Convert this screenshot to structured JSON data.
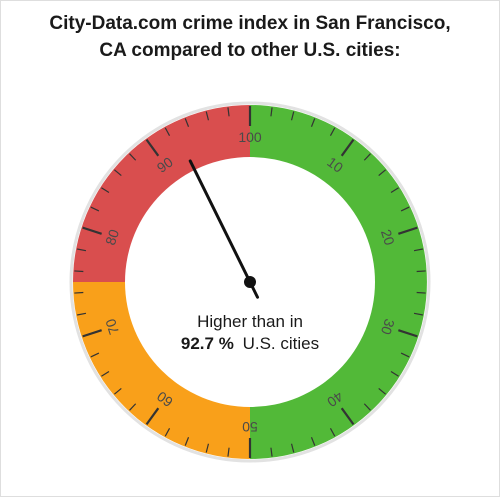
{
  "title": {
    "line1": "City-Data.com crime index in San Francisco,",
    "line2": "CA compared to other U.S. cities:"
  },
  "colors": {
    "low": "#52b938",
    "mid": "#f9a01a",
    "high": "#d94e4e",
    "needle": "#111111"
  },
  "chart_data": {
    "type": "gauge",
    "min": 0,
    "max": 100,
    "value": 92.7,
    "bands": [
      {
        "from": 0,
        "to": 50,
        "color": "#52b938"
      },
      {
        "from": 50,
        "to": 75,
        "color": "#f9a01a"
      },
      {
        "from": 75,
        "to": 100,
        "color": "#d94e4e"
      }
    ],
    "tick_labels": [
      "10",
      "20",
      "30",
      "40",
      "50",
      "60",
      "70",
      "80",
      "90",
      "100"
    ],
    "annotation": {
      "line1": "Higher than in",
      "value_text": "92.7 %",
      "suffix": "U.S. cities"
    }
  }
}
